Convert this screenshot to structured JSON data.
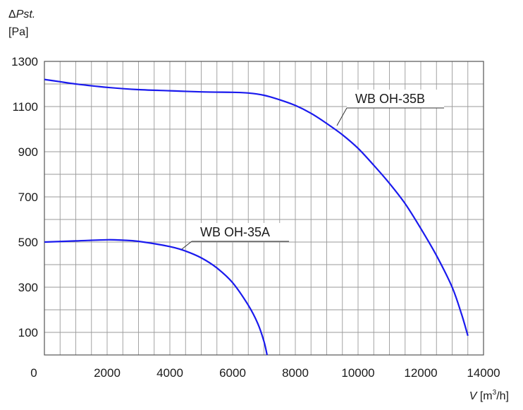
{
  "chart_data": {
    "type": "line",
    "y_axis": {
      "symbol": "Δ",
      "variable": "Pst.",
      "unit": "[Pa]",
      "range": [
        0,
        1300
      ],
      "tick_labels": [
        "100",
        "300",
        "500",
        "700",
        "900",
        "1100",
        "1300"
      ]
    },
    "x_axis": {
      "variable": "V",
      "unit_open": "[m",
      "unit_sup": "3",
      "unit_close": "/h]",
      "range": [
        0,
        14000
      ],
      "tick_labels": [
        "0",
        "2000",
        "4000",
        "6000",
        "8000",
        "10000",
        "12000",
        "14000"
      ]
    },
    "grid": true,
    "colors": {
      "series": "#1a1aee",
      "grid": "#9a9a9a",
      "frame": "#555555"
    },
    "series": [
      {
        "name": "WB OH-35B",
        "x": [
          0,
          500,
          1000,
          2000,
          3000,
          4000,
          5000,
          6000,
          6500,
          7000,
          7500,
          8000,
          8500,
          9000,
          9500,
          10000,
          10500,
          11000,
          11500,
          12000,
          12500,
          13000,
          13300,
          13500
        ],
        "y": [
          1220,
          1210,
          1200,
          1185,
          1175,
          1170,
          1165,
          1163,
          1160,
          1150,
          1130,
          1105,
          1070,
          1025,
          975,
          915,
          840,
          760,
          670,
          560,
          440,
          300,
          180,
          85
        ]
      },
      {
        "name": "WB OH-35A",
        "x": [
          0,
          1000,
          2000,
          2500,
          3000,
          4000,
          4500,
          5000,
          5500,
          6000,
          6500,
          6800,
          7000,
          7100
        ],
        "y": [
          500,
          505,
          510,
          508,
          503,
          480,
          460,
          430,
          385,
          320,
          220,
          140,
          60,
          0
        ]
      }
    ]
  }
}
